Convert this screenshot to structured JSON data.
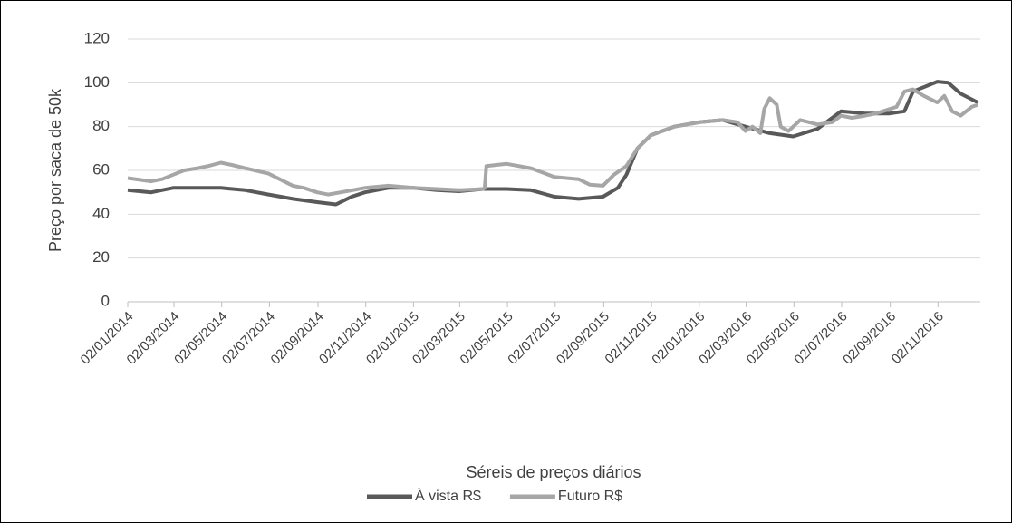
{
  "chart_data": {
    "type": "line",
    "y_label": "Preço por saca de 50k",
    "x_label": "Séreis de preços diários",
    "xlim": [
      "02/01/2014",
      "26/12/2016"
    ],
    "xticks": [
      "02/01/2014",
      "02/03/2014",
      "02/05/2014",
      "02/07/2014",
      "02/09/2014",
      "02/11/2014",
      "02/01/2015",
      "02/03/2015",
      "02/05/2015",
      "02/07/2015",
      "02/09/2015",
      "02/11/2015",
      "02/01/2016",
      "02/03/2016",
      "02/05/2016",
      "02/07/2016",
      "02/09/2016",
      "02/11/2016"
    ],
    "ylim": [
      0,
      120
    ],
    "yticks": [
      0,
      20,
      40,
      60,
      80,
      100,
      120
    ],
    "grid": true,
    "legend": "bottom",
    "series": [
      {
        "name": "À vista R$",
        "color": "#595959",
        "x": [
          "02/01/2014",
          "01/02/2014",
          "01/03/2014",
          "01/04/2014",
          "01/05/2014",
          "01/06/2014",
          "01/07/2014",
          "01/08/2014",
          "01/09/2014",
          "25/09/2014",
          "15/10/2014",
          "01/11/2014",
          "01/12/2014",
          "02/01/2015",
          "01/02/2015",
          "01/03/2015",
          "01/04/2015",
          "01/05/2015",
          "01/06/2015",
          "01/07/2015",
          "01/08/2015",
          "01/09/2015",
          "20/09/2015",
          "01/10/2015",
          "15/10/2015",
          "01/11/2015",
          "01/12/2015",
          "02/01/2016",
          "01/02/2016",
          "01/03/2016",
          "01/04/2016",
          "01/05/2016",
          "01/06/2016",
          "01/07/2016",
          "01/08/2016",
          "01/09/2016",
          "20/09/2016",
          "01/10/2016",
          "01/11/2016",
          "15/11/2016",
          "01/12/2016",
          "23/12/2016"
        ],
        "values": [
          51,
          50,
          52,
          52,
          52,
          51,
          49,
          47,
          45.5,
          44.5,
          48,
          50,
          52,
          52,
          51,
          50.5,
          51.5,
          51.5,
          51,
          48,
          47,
          48,
          52,
          58,
          70,
          76,
          80,
          82,
          83,
          80,
          77,
          75.5,
          79,
          87,
          86,
          86,
          87,
          96,
          100.5,
          100,
          95,
          91
        ]
      },
      {
        "name": "Futuro R$",
        "color": "#a6a6a6",
        "x": [
          "02/01/2014",
          "01/02/2014",
          "15/02/2014",
          "01/03/2014",
          "15/03/2014",
          "01/04/2014",
          "15/04/2014",
          "01/05/2014",
          "15/05/2014",
          "01/06/2014",
          "01/07/2014",
          "15/07/2014",
          "01/08/2014",
          "15/08/2014",
          "01/09/2014",
          "15/09/2014",
          "01/10/2014",
          "01/11/2014",
          "01/12/2014",
          "02/01/2015",
          "01/02/2015",
          "01/03/2015",
          "01/04/2015",
          "03/04/2015",
          "05/04/2015",
          "01/05/2015",
          "01/06/2015",
          "01/07/2015",
          "01/08/2015",
          "15/08/2015",
          "01/09/2015",
          "15/09/2015",
          "01/10/2015",
          "15/10/2015",
          "01/11/2015",
          "01/12/2015",
          "02/01/2016",
          "01/02/2016",
          "20/02/2016",
          "01/03/2016",
          "10/03/2016",
          "20/03/2016",
          "25/03/2016",
          "01/04/2016",
          "10/04/2016",
          "15/04/2016",
          "25/04/2016",
          "10/05/2016",
          "01/06/2016",
          "20/06/2016",
          "01/07/2016",
          "15/07/2016",
          "01/08/2016",
          "15/08/2016",
          "01/09/2016",
          "10/09/2016",
          "20/09/2016",
          "01/10/2016",
          "15/10/2016",
          "01/11/2016",
          "10/11/2016",
          "20/11/2016",
          "01/12/2016",
          "15/12/2016",
          "23/12/2016"
        ],
        "values": [
          56.5,
          55,
          56,
          58,
          60,
          61,
          62,
          63.5,
          62.5,
          61,
          58.5,
          56,
          53,
          52,
          50,
          49,
          50,
          52,
          53,
          52,
          51.5,
          51,
          51.5,
          52,
          62,
          63,
          61,
          57,
          56,
          53.5,
          53,
          58,
          62,
          70,
          76,
          80,
          82,
          83,
          82,
          78,
          80,
          77,
          88,
          93,
          90,
          80,
          78,
          83,
          81,
          82,
          85,
          84,
          85,
          86,
          88,
          89,
          96,
          97,
          94,
          91,
          94,
          87,
          85,
          89,
          90
        ]
      }
    ]
  }
}
